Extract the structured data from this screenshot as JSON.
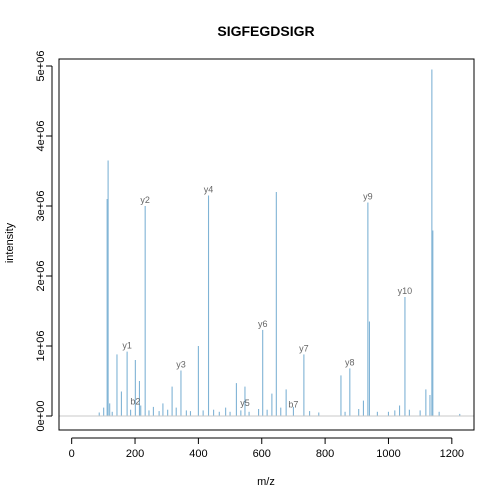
{
  "chart_data": {
    "type": "bar",
    "title": "SIGFEGDSIGR",
    "xlabel": "m/z",
    "ylabel": "intensity",
    "xlim": [
      -40,
      1270
    ],
    "ylim": [
      -200000,
      5100000
    ],
    "x_ticks": [
      0,
      200,
      400,
      600,
      800,
      1000,
      1200
    ],
    "x_tick_labels": [
      "0",
      "200",
      "400",
      "600",
      "800",
      "1000",
      "1200"
    ],
    "y_ticks": [
      0,
      1000000,
      2000000,
      3000000,
      4000000,
      5000000
    ],
    "y_tick_labels": [
      "0e+00",
      "1e+06",
      "2e+06",
      "3e+06",
      "4e+06",
      "5e+06"
    ],
    "bar_color": "#7fb3d5",
    "label_color": "#666666",
    "peaks": [
      [
        87,
        50000
      ],
      [
        101,
        120000
      ],
      [
        112,
        3100000
      ],
      [
        115,
        3650000
      ],
      [
        120,
        180000
      ],
      [
        128,
        60000
      ],
      [
        143,
        880000
      ],
      [
        157,
        350000
      ],
      [
        175,
        920000
      ],
      [
        186,
        90000
      ],
      [
        201,
        800000
      ],
      [
        214,
        500000
      ],
      [
        218,
        150000
      ],
      [
        232,
        3000000
      ],
      [
        244,
        80000
      ],
      [
        258,
        130000
      ],
      [
        276,
        70000
      ],
      [
        288,
        180000
      ],
      [
        303,
        90000
      ],
      [
        317,
        420000
      ],
      [
        330,
        120000
      ],
      [
        345,
        650000
      ],
      [
        362,
        80000
      ],
      [
        375,
        70000
      ],
      [
        400,
        1000000
      ],
      [
        415,
        80000
      ],
      [
        432,
        3150000
      ],
      [
        448,
        90000
      ],
      [
        466,
        60000
      ],
      [
        486,
        120000
      ],
      [
        500,
        60000
      ],
      [
        520,
        470000
      ],
      [
        534,
        80000
      ],
      [
        547,
        420000
      ],
      [
        560,
        60000
      ],
      [
        590,
        100000
      ],
      [
        603,
        1230000
      ],
      [
        617,
        90000
      ],
      [
        632,
        320000
      ],
      [
        646,
        3200000
      ],
      [
        660,
        120000
      ],
      [
        677,
        380000
      ],
      [
        700,
        130000
      ],
      [
        733,
        880000
      ],
      [
        751,
        70000
      ],
      [
        780,
        50000
      ],
      [
        850,
        580000
      ],
      [
        863,
        60000
      ],
      [
        878,
        680000
      ],
      [
        906,
        100000
      ],
      [
        921,
        220000
      ],
      [
        935,
        3050000
      ],
      [
        940,
        1350000
      ],
      [
        965,
        60000
      ],
      [
        1000,
        60000
      ],
      [
        1020,
        80000
      ],
      [
        1035,
        150000
      ],
      [
        1052,
        1700000
      ],
      [
        1066,
        90000
      ],
      [
        1100,
        80000
      ],
      [
        1118,
        380000
      ],
      [
        1131,
        300000
      ],
      [
        1137,
        4950000
      ],
      [
        1140,
        2650000
      ],
      [
        1160,
        60000
      ],
      [
        1225,
        30000
      ]
    ],
    "annotations": [
      {
        "text": "y1",
        "x": 175,
        "y": 920000
      },
      {
        "text": "b2",
        "x": 201,
        "y": 120000
      },
      {
        "text": "y2",
        "x": 232,
        "y": 3000000
      },
      {
        "text": "y3",
        "x": 345,
        "y": 650000
      },
      {
        "text": "y4",
        "x": 432,
        "y": 3150000
      },
      {
        "text": "y5",
        "x": 547,
        "y": 100000
      },
      {
        "text": "y6",
        "x": 603,
        "y": 1230000
      },
      {
        "text": "b7",
        "x": 700,
        "y": 80000
      },
      {
        "text": "y7",
        "x": 733,
        "y": 880000
      },
      {
        "text": "y8",
        "x": 878,
        "y": 680000
      },
      {
        "text": "y9",
        "x": 935,
        "y": 3050000
      },
      {
        "text": "y10",
        "x": 1052,
        "y": 1700000
      }
    ]
  }
}
